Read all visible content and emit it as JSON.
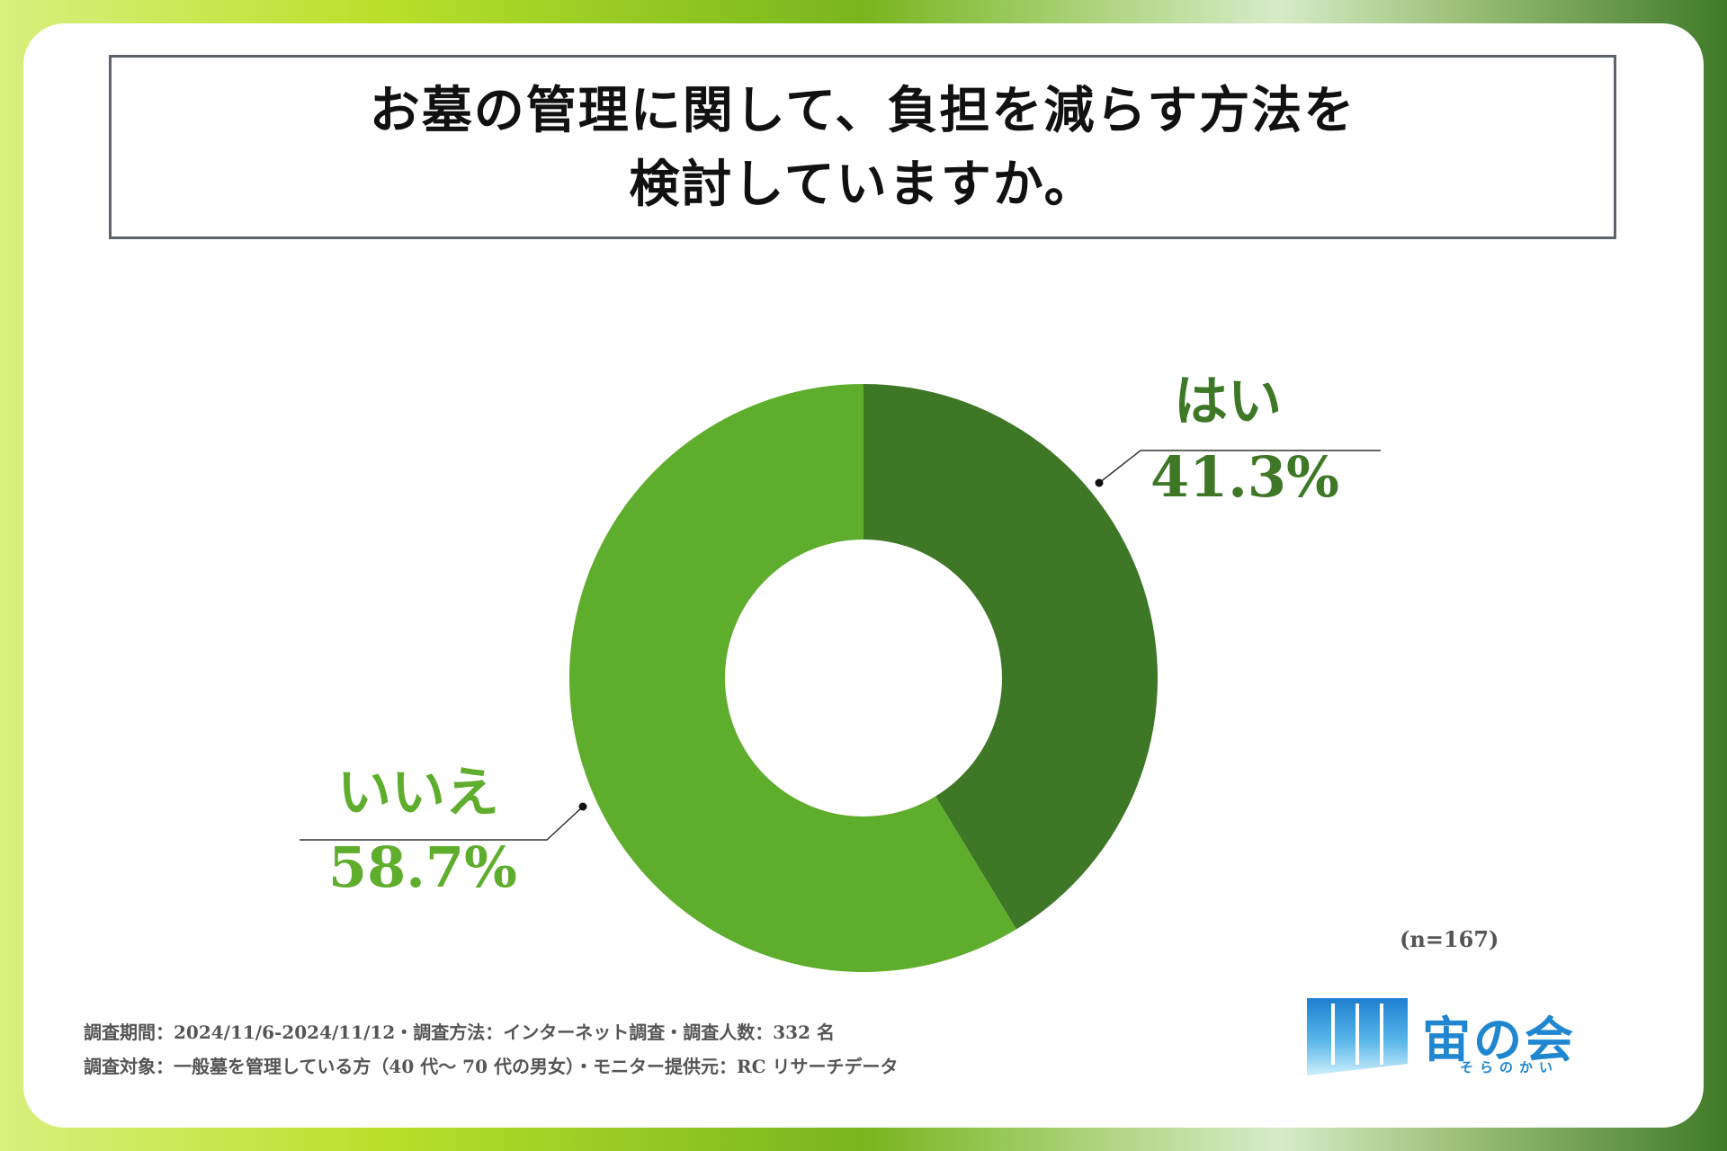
{
  "title": {
    "line1": "お墓の管理に関して、負担を減らす方法を",
    "line2": "検討していますか。"
  },
  "chart_data": {
    "type": "pie",
    "donut": true,
    "title": "お墓の管理に関して、負担を減らす方法を検討していますか。",
    "slices": [
      {
        "label": "はい",
        "value": 41.3,
        "display": "41.3%",
        "color": "#3e7726"
      },
      {
        "label": "いいえ",
        "value": 58.7,
        "display": "58.7%",
        "color": "#5fad2d"
      }
    ],
    "n_label": "(n=167)"
  },
  "footnote": {
    "line1": "調査期間：2024/11/6-2024/11/12・調査方法：インターネット調査・調査人数：332 名",
    "line2": "調査対象：一般墓を管理している方（40 代〜 70 代の男女）・モニター提供元：RC リサーチデータ"
  },
  "logo": {
    "name": "宙の会",
    "reading": "そらのかい",
    "icon": "building-window-icon",
    "color": "#1f86cf"
  }
}
